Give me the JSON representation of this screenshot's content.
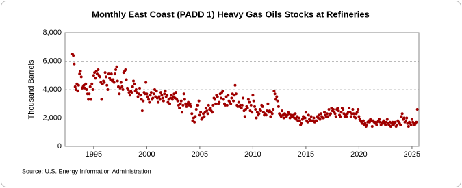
{
  "chart_data": {
    "type": "scatter",
    "title": "Monthly East Coast (PADD 1) Heavy Gas Oils Stocks at Refineries",
    "y_label": "Thousand Barrels",
    "source": "Source: U.S. Energy Information Administration",
    "xlim": [
      1992.3,
      2025.65
    ],
    "ylim": [
      0,
      8000
    ],
    "xticks": [
      1995,
      2000,
      2005,
      2010,
      2015,
      2020,
      2025
    ],
    "yticks": [
      0,
      {
        "value": 2000,
        "label": "2,000"
      },
      {
        "value": 4000,
        "label": "4,000"
      },
      {
        "value": 6000,
        "label": "6,000"
      },
      {
        "value": 8000,
        "label": "8,000"
      }
    ],
    "grid": true,
    "color": "#a00000",
    "x": [
      1993,
      1993.08,
      1993.17,
      1993.25,
      1993.33,
      1993.42,
      1993.5,
      1993.58,
      1993.67,
      1993.75,
      1993.83,
      1993.92,
      1994,
      1994.08,
      1994.17,
      1994.25,
      1994.33,
      1994.42,
      1994.5,
      1994.58,
      1994.67,
      1994.75,
      1994.83,
      1994.92,
      1995,
      1995.08,
      1995.17,
      1995.25,
      1995.33,
      1995.42,
      1995.5,
      1995.58,
      1995.67,
      1995.75,
      1995.83,
      1995.92,
      1996,
      1996.08,
      1996.17,
      1996.25,
      1996.33,
      1996.42,
      1996.5,
      1996.58,
      1996.67,
      1996.75,
      1996.83,
      1996.92,
      1997,
      1997.08,
      1997.17,
      1997.25,
      1997.33,
      1997.42,
      1997.5,
      1997.58,
      1997.67,
      1997.75,
      1997.83,
      1997.92,
      1998,
      1998.08,
      1998.17,
      1998.25,
      1998.33,
      1998.42,
      1998.5,
      1998.58,
      1998.67,
      1998.75,
      1998.83,
      1998.92,
      1999,
      1999.08,
      1999.17,
      1999.25,
      1999.33,
      1999.42,
      1999.5,
      1999.58,
      1999.67,
      1999.75,
      1999.83,
      1999.92,
      2000,
      2000.08,
      2000.17,
      2000.25,
      2000.33,
      2000.42,
      2000.5,
      2000.58,
      2000.67,
      2000.75,
      2000.83,
      2000.92,
      2001,
      2001.08,
      2001.17,
      2001.25,
      2001.33,
      2001.42,
      2001.5,
      2001.58,
      2001.67,
      2001.75,
      2001.83,
      2001.92,
      2002,
      2002.08,
      2002.17,
      2002.25,
      2002.33,
      2002.42,
      2002.5,
      2002.58,
      2002.67,
      2002.75,
      2002.83,
      2002.92,
      2003,
      2003.08,
      2003.17,
      2003.25,
      2003.33,
      2003.42,
      2003.5,
      2003.58,
      2003.67,
      2003.75,
      2003.83,
      2003.92,
      2004,
      2004.08,
      2004.17,
      2004.25,
      2004.33,
      2004.42,
      2004.5,
      2004.58,
      2004.67,
      2004.75,
      2004.83,
      2004.92,
      2005,
      2005.08,
      2005.17,
      2005.25,
      2005.33,
      2005.42,
      2005.5,
      2005.58,
      2005.67,
      2005.75,
      2005.83,
      2005.92,
      2006,
      2006.08,
      2006.17,
      2006.25,
      2006.33,
      2006.42,
      2006.5,
      2006.58,
      2006.67,
      2006.75,
      2006.83,
      2006.92,
      2007,
      2007.08,
      2007.17,
      2007.25,
      2007.33,
      2007.42,
      2007.5,
      2007.58,
      2007.67,
      2007.75,
      2007.83,
      2007.92,
      2008,
      2008.08,
      2008.17,
      2008.25,
      2008.33,
      2008.42,
      2008.5,
      2008.58,
      2008.67,
      2008.75,
      2008.83,
      2008.92,
      2009,
      2009.08,
      2009.17,
      2009.25,
      2009.33,
      2009.42,
      2009.5,
      2009.58,
      2009.67,
      2009.75,
      2009.83,
      2009.92,
      2010,
      2010.08,
      2010.17,
      2010.25,
      2010.33,
      2010.42,
      2010.5,
      2010.58,
      2010.67,
      2010.75,
      2010.83,
      2010.92,
      2011,
      2011.08,
      2011.17,
      2011.25,
      2011.33,
      2011.42,
      2011.5,
      2011.58,
      2011.67,
      2011.75,
      2011.83,
      2011.92,
      2012,
      2012.08,
      2012.17,
      2012.25,
      2012.33,
      2012.42,
      2012.5,
      2012.58,
      2012.67,
      2012.75,
      2012.83,
      2012.92,
      2013,
      2013.08,
      2013.17,
      2013.25,
      2013.33,
      2013.42,
      2013.5,
      2013.58,
      2013.67,
      2013.75,
      2013.83,
      2013.92,
      2014,
      2014.08,
      2014.17,
      2014.25,
      2014.33,
      2014.42,
      2014.5,
      2014.58,
      2014.67,
      2014.75,
      2014.83,
      2014.92,
      2015,
      2015.08,
      2015.17,
      2015.25,
      2015.33,
      2015.42,
      2015.5,
      2015.58,
      2015.67,
      2015.75,
      2015.83,
      2015.92,
      2016,
      2016.08,
      2016.17,
      2016.25,
      2016.33,
      2016.42,
      2016.5,
      2016.58,
      2016.67,
      2016.75,
      2016.83,
      2016.92,
      2017,
      2017.08,
      2017.17,
      2017.25,
      2017.33,
      2017.42,
      2017.5,
      2017.58,
      2017.67,
      2017.75,
      2017.83,
      2017.92,
      2018,
      2018.08,
      2018.17,
      2018.25,
      2018.33,
      2018.42,
      2018.5,
      2018.58,
      2018.67,
      2018.75,
      2018.83,
      2018.92,
      2019,
      2019.08,
      2019.17,
      2019.25,
      2019.33,
      2019.42,
      2019.5,
      2019.58,
      2019.67,
      2019.75,
      2019.83,
      2019.92,
      2020,
      2020.08,
      2020.17,
      2020.25,
      2020.33,
      2020.42,
      2020.5,
      2020.58,
      2020.67,
      2020.75,
      2020.83,
      2020.92,
      2021,
      2021.08,
      2021.17,
      2021.25,
      2021.33,
      2021.42,
      2021.5,
      2021.58,
      2021.67,
      2021.75,
      2021.83,
      2021.92,
      2022,
      2022.08,
      2022.17,
      2022.25,
      2022.33,
      2022.42,
      2022.5,
      2022.58,
      2022.67,
      2022.75,
      2022.83,
      2022.92,
      2023,
      2023.08,
      2023.17,
      2023.25,
      2023.33,
      2023.42,
      2023.5,
      2023.58,
      2023.67,
      2023.75,
      2023.83,
      2023.92,
      2024,
      2024.08,
      2024.17,
      2024.25,
      2024.33,
      2024.42,
      2024.5,
      2024.58,
      2024.67,
      2024.75,
      2024.83,
      2024.92,
      2025,
      2025.08,
      2025.17,
      2025.25,
      2025.33,
      2025.42,
      2025.5
    ],
    "values": [
      6500,
      6400,
      5800,
      4200,
      4000,
      4400,
      3900,
      4300,
      5100,
      5300,
      4900,
      4100,
      4200,
      4300,
      4100,
      4400,
      4000,
      3700,
      3300,
      3700,
      4200,
      3300,
      4400,
      4000,
      5000,
      5200,
      4800,
      5300,
      5100,
      5400,
      5000,
      4900,
      4500,
      3300,
      4400,
      4600,
      4500,
      5200,
      4900,
      4300,
      4000,
      5100,
      4800,
      4700,
      5100,
      4600,
      4700,
      4500,
      5100,
      5400,
      5600,
      4600,
      4200,
      3700,
      4100,
      4500,
      4200,
      4000,
      5200,
      5300,
      5400,
      4700,
      4100,
      4000,
      3800,
      3600,
      3900,
      3800,
      4200,
      4600,
      4400,
      3900,
      4000,
      3800,
      3500,
      3700,
      4100,
      3600,
      3300,
      2500,
      3200,
      3800,
      3700,
      4500,
      3700,
      3500,
      3300,
      3100,
      3600,
      3800,
      3300,
      3400,
      3700,
      4000,
      3500,
      3900,
      3400,
      3100,
      3500,
      3300,
      3800,
      3600,
      3400,
      3200,
      3700,
      3900,
      3500,
      3600,
      3100,
      3300,
      3000,
      3400,
      3600,
      3300,
      3500,
      3700,
      3400,
      3800,
      3300,
      3200,
      2900,
      2700,
      3000,
      3200,
      2400,
      2900,
      3700,
      3300,
      3000,
      2800,
      3000,
      3100,
      2900,
      3000,
      2800,
      2300,
      1800,
      2000,
      1700,
      2100,
      2600,
      2900,
      2900,
      3200,
      2200,
      2400,
      1900,
      2000,
      2300,
      2100,
      2400,
      2700,
      2500,
      2300,
      2900,
      2600,
      2700,
      2500,
      2400,
      2900,
      3400,
      3300,
      3000,
      3600,
      3500,
      3000,
      3100,
      3700,
      3400,
      3800,
      3900,
      3300,
      3000,
      2900,
      3500,
      2900,
      3600,
      3200,
      3100,
      3000,
      3400,
      3700,
      3200,
      3600,
      4300,
      3700,
      2900,
      2800,
      3100,
      2800,
      2900,
      2700,
      2900,
      3400,
      2500,
      2100,
      2600,
      2800,
      2700,
      3300,
      3100,
      2500,
      2900,
      2400,
      3600,
      3200,
      2800,
      2600,
      2000,
      2400,
      2200,
      2300,
      2600,
      2500,
      2900,
      2800,
      2400,
      2200,
      2300,
      2200,
      2500,
      3000,
      2400,
      2500,
      2100,
      2400,
      2300,
      2600,
      3900,
      3700,
      3300,
      3500,
      3200,
      2800,
      2300,
      2200,
      2100,
      2500,
      2200,
      2000,
      2300,
      2200,
      2100,
      2200,
      2400,
      2300,
      2000,
      2200,
      2100,
      2100,
      2200,
      2000,
      2300,
      1900,
      2100,
      1800,
      2000,
      1800,
      1500,
      1600,
      1900,
      2100,
      2000,
      2000,
      2400,
      1800,
      1700,
      2200,
      1900,
      1800,
      2100,
      1800,
      1800,
      2000,
      1700,
      1800,
      1800,
      2100,
      2000,
      2200,
      1900,
      2300,
      2100,
      2000,
      2000,
      2400,
      2200,
      2100,
      2300,
      2100,
      2600,
      2200,
      2300,
      2700,
      2500,
      2600,
      2400,
      2300,
      2100,
      2600,
      2700,
      2500,
      2200,
      2100,
      2400,
      2700,
      2600,
      2300,
      2100,
      2200,
      2100,
      2300,
      2400,
      2700,
      2400,
      2100,
      2300,
      2600,
      2300,
      2100,
      2000,
      2300,
      2400,
      2600,
      2100,
      1900,
      1800,
      1700,
      1600,
      1800,
      1500,
      1600,
      1400,
      1500,
      1700,
      1800,
      1700,
      1900,
      1800,
      1400,
      1800,
      1700,
      1700,
      1600,
      1500,
      1700,
      1800,
      1900,
      1700,
      1500,
      1600,
      1700,
      1800,
      1600,
      1500,
      1700,
      1900,
      1600,
      1500,
      1700,
      1400,
      1600,
      1700,
      1500,
      1600,
      1700,
      1400,
      1500,
      1800,
      1700,
      1600,
      1500,
      2100,
      2300,
      1900,
      2000,
      1700,
      1800,
      2000,
      1600,
      1400,
      1700,
      1600,
      1500,
      1900,
      1700,
      1600,
      1500,
      1600,
      1700,
      2600
    ]
  }
}
